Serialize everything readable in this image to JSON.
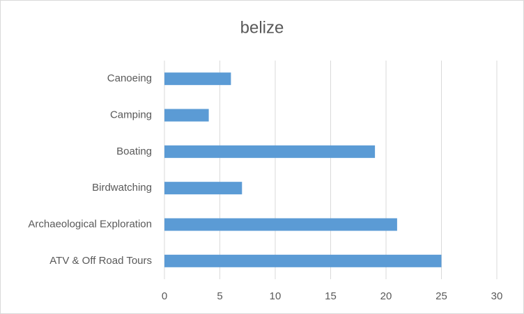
{
  "chart_data": {
    "type": "bar",
    "title": "belize",
    "categories": [
      "Canoeing",
      "Camping",
      "Boating",
      "Birdwatching",
      "Archaeological Exploration",
      "ATV & Off Road Tours"
    ],
    "values": [
      6,
      4,
      19,
      7,
      21,
      25
    ],
    "color": "#5b9bd5",
    "xlim": [
      0,
      30
    ],
    "xticks": [
      0,
      5,
      10,
      15,
      20,
      25,
      30
    ],
    "grid": true
  }
}
